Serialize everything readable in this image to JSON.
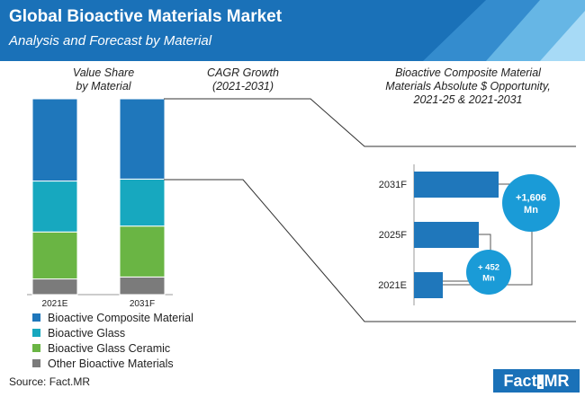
{
  "header": {
    "title": "Global Bioactive Materials Market",
    "subtitle": "Analysis and Forecast by Material"
  },
  "columns": {
    "value_share": "Value Share\nby Material",
    "cagr": "CAGR Growth\n(2021-2031)",
    "opportunity": "Bioactive Composite Material\nMaterials Absolute $ Opportunity,\n2021-25 & 2021-2031"
  },
  "colors": {
    "header_bg": "#1a71b8",
    "composite": "#1f77bb",
    "glass": "#17a8bf",
    "ceramic": "#6ab544",
    "other": "#7b7b7b",
    "bubble": "#1a9bd7"
  },
  "chart_data": [
    {
      "type": "bar",
      "stacked": true,
      "categories": [
        "2021E",
        "2031F"
      ],
      "series": [
        {
          "name": "Other Bioactive Materials",
          "values": [
            8,
            9
          ]
        },
        {
          "name": "Bioactive Glass Ceramic",
          "values": [
            24,
            26
          ]
        },
        {
          "name": "Bioactive Glass",
          "values": [
            26,
            24
          ]
        },
        {
          "name": "Bioactive Composite Material",
          "values": [
            42,
            41
          ]
        }
      ],
      "ylim": [
        0,
        100
      ],
      "legend": "bottom"
    },
    {
      "type": "bar",
      "orientation": "horizontal",
      "categories": [
        "2031F",
        "2025F",
        "2021E"
      ],
      "values": [
        94,
        72,
        32
      ],
      "annotations": [
        {
          "text": "+1,606\nMn",
          "spans": [
            "2021E",
            "2031F"
          ]
        },
        {
          "text": "+ 452\nMn",
          "spans": [
            "2021E",
            "2025F"
          ]
        }
      ]
    }
  ],
  "source": "Source: Fact.MR",
  "logo": "Fact.MR"
}
